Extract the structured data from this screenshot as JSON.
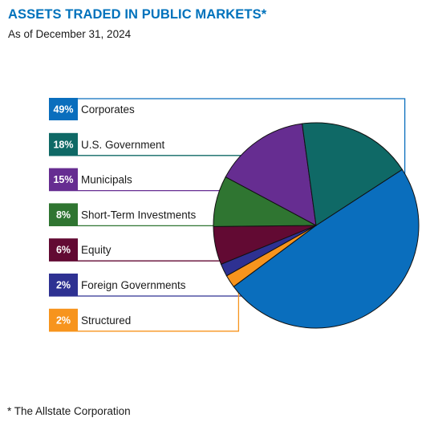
{
  "header": {
    "title": "ASSETS TRADED IN PUBLIC MARKETS*",
    "subtitle": "As of December 31, 2024"
  },
  "footnote": "* The Allstate Corporation",
  "chart_data": {
    "type": "pie",
    "title": "ASSETS TRADED IN PUBLIC MARKETS*",
    "subtitle": "As of December 31, 2024",
    "legend_position": "left",
    "slices": [
      {
        "label": "Corporates",
        "value": 49,
        "display": "49%",
        "color": "#0a6ebd"
      },
      {
        "label": "Structured",
        "value": 2,
        "display": "2%",
        "color": "#f7941d"
      },
      {
        "label": "Foreign Governments",
        "value": 2,
        "display": "2%",
        "color": "#2e3192"
      },
      {
        "label": "Equity",
        "value": 6,
        "display": "6%",
        "color": "#620a33"
      },
      {
        "label": "Short-Term Investments",
        "value": 8,
        "display": "8%",
        "color": "#2f7531"
      },
      {
        "label": "Municipals",
        "value": 15,
        "display": "15%",
        "color": "#662d91"
      },
      {
        "label": "U.S. Government",
        "value": 18,
        "display": "18%",
        "color": "#0f6966"
      }
    ],
    "legend_order": [
      "Corporates",
      "U.S. Government",
      "Municipals",
      "Short-Term Investments",
      "Equity",
      "Foreign Governments",
      "Structured"
    ]
  }
}
